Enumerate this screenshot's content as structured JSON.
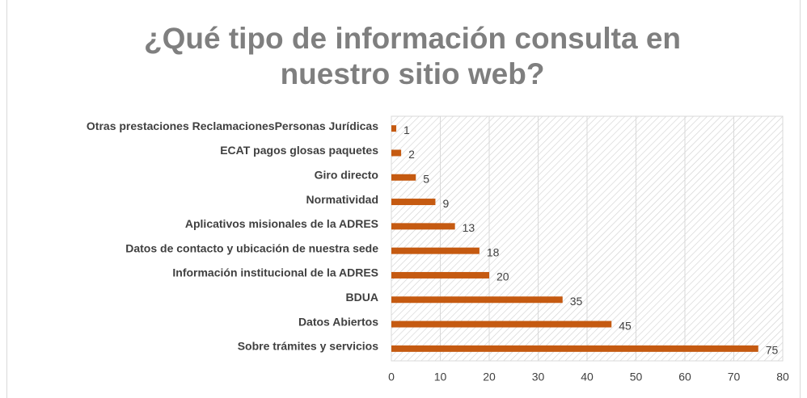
{
  "chart_data": {
    "type": "hbar",
    "title": "¿Qué tipo de información consulta en nuestro sitio web?",
    "categories": [
      "Otras prestaciones ReclamacionesPersonas Jurídicas",
      "ECAT pagos glosas paquetes",
      "Giro directo",
      "Normatividad",
      "Aplicativos misionales de la ADRES",
      "Datos de contacto y ubicación de nuestra sede",
      "Información institucional de la ADRES",
      "BDUA",
      "Datos Abiertos",
      "Sobre trámites y servicios"
    ],
    "values": [
      1,
      2,
      5,
      9,
      13,
      18,
      20,
      35,
      45,
      75
    ],
    "color": "#c55a11",
    "xlim": [
      0,
      80
    ],
    "xticks": [
      0,
      10,
      20,
      30,
      40,
      50,
      60,
      70,
      80
    ],
    "grid": true
  }
}
